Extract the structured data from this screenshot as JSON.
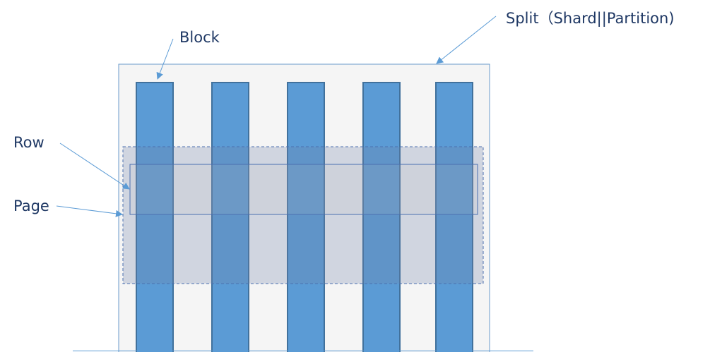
{
  "labels": {
    "block": "Block",
    "row": "Row",
    "page": "Page",
    "split": "Split（Shard||Partition)"
  },
  "block_count": 5,
  "colors": {
    "block_fill": "#5b9bd5",
    "block_stroke": "#41719c",
    "split_fill": "#f5f5f5",
    "split_stroke": "#6a9acb",
    "page_fill": "#8a9ab8",
    "row_stroke": "#4a70b0",
    "arrow": "#5b9bd5",
    "text": "#1f3864"
  }
}
